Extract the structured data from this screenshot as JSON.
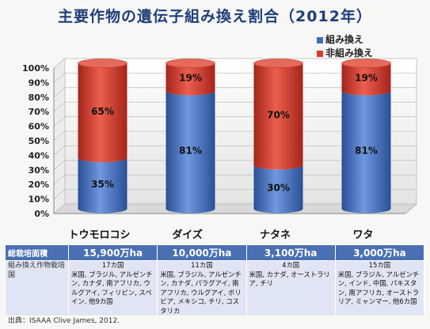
{
  "title": "主要作物の遺伝子組み換え割合（2012年）",
  "chart_data": {
    "type": "bar",
    "stacked": true,
    "categories": [
      "トウモロコシ",
      "ダイズ",
      "ナタネ",
      "ワタ"
    ],
    "series": [
      {
        "name": "組み換え",
        "color": "#3e6fbd",
        "values": [
          35,
          81,
          30,
          81
        ],
        "labels": [
          "35%",
          "81%",
          "30%",
          "81%"
        ]
      },
      {
        "name": "非組み換え",
        "color": "#d63a2c",
        "values": [
          65,
          19,
          70,
          19
        ],
        "labels": [
          "65%",
          "19%",
          "70%",
          "19%"
        ]
      }
    ],
    "ylim": [
      0,
      100
    ],
    "yticks": [
      "0%",
      "10%",
      "20%",
      "30%",
      "40%",
      "50%",
      "60%",
      "70%",
      "80%",
      "90%",
      "100%"
    ],
    "grid": true,
    "legend": "top-right"
  },
  "table": {
    "area_header": "総栽培面積",
    "areas": [
      "15,900万ha",
      "10,000万ha",
      "3,100万ha",
      "3,000万ha"
    ],
    "countries_header": "組み換え作物栽培国",
    "country_counts": [
      "17カ国",
      "11カ国",
      "4カ国",
      "15カ国"
    ],
    "country_lists": [
      "米国, ブラジル, アルゼンチン, カナダ, 南アフリカ, ウルグアイ, フィリピン, スペイン, 他9カ国",
      "米国, ブラジル, アルゼンチン, カナダ, パラグアイ, 南アフリカ, ウルグアイ, ボリビア, メキシコ, チリ, コスタリカ",
      "米国, カナダ, オーストラリア, チリ",
      "米国, ブラジル, アルゼンチン, インド, 中国, パキスタン, 南アフリカ, オーストラリア, ミャンマー, 他6カ国"
    ]
  },
  "source": "出典：ISAAA Clive James, 2012."
}
